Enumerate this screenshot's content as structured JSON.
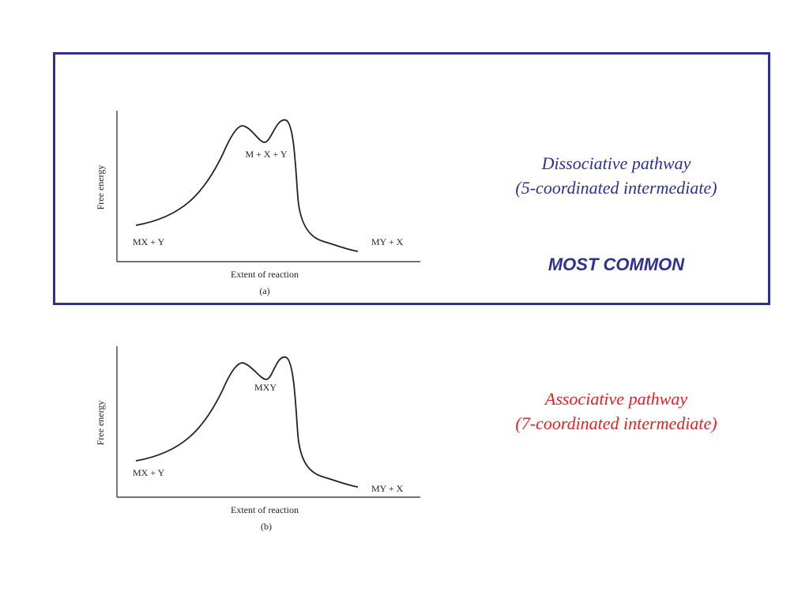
{
  "colors": {
    "frame": "#2e3192",
    "dissociative": "#2e3192",
    "associative": "#e32227",
    "curve": "#222222"
  },
  "diagram_a": {
    "y_label": "Free energy",
    "x_label": "Extent of reaction",
    "panel_label": "(a)",
    "left_label": "MX + Y",
    "intermediate_label": "M + X + Y",
    "right_label": "MY + X",
    "caption_line1": "Dissociative pathway",
    "caption_line2": "(5-coordinated intermediate)",
    "note": "MOST COMMON"
  },
  "diagram_b": {
    "y_label": "Free energy",
    "x_label": "Extent of reaction",
    "panel_label": "(b)",
    "left_label": "MX + Y",
    "intermediate_label": "MXY",
    "right_label": "MY + X",
    "caption_line1": "Associative pathway",
    "caption_line2": "(7-coordinated intermediate)"
  }
}
